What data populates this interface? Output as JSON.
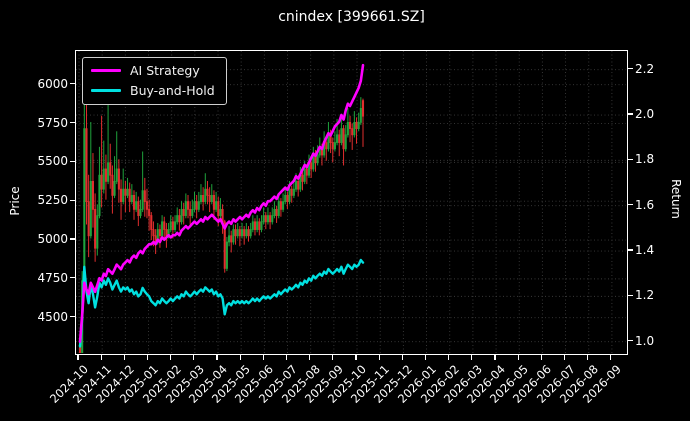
{
  "chart_data": {
    "type": "candlestick+line",
    "title": "cnindex [399661.SZ]",
    "x_axis": {
      "tick_labels": [
        "2024-10",
        "2024-11",
        "2024-12",
        "2025-01",
        "2025-02",
        "2025-03",
        "2025-04",
        "2025-05",
        "2025-06",
        "2025-07",
        "2025-08",
        "2025-09",
        "2025-10",
        "2025-11",
        "2025-12",
        "2026-01",
        "2026-02",
        "2026-03",
        "2026-04",
        "2026-05",
        "2026-06",
        "2026-07",
        "2026-08",
        "2026-09"
      ],
      "data_start": "2024-10",
      "data_end": "2025-10"
    },
    "y_left": {
      "label": "Price",
      "ticks": [
        "4500",
        "4750",
        "5000",
        "5250",
        "5500",
        "5750",
        "6000"
      ],
      "range": [
        4262,
        6226
      ]
    },
    "y_right": {
      "label": "Return",
      "ticks": [
        "1.0",
        "1.2",
        "1.4",
        "1.6",
        "1.8",
        "2.0",
        "2.2"
      ],
      "range": [
        0.94,
        2.29
      ]
    },
    "legend": [
      {
        "label": "AI Strategy",
        "color": "#ff00ff"
      },
      {
        "label": "Buy-and-Hold",
        "color": "#00e0e0"
      }
    ],
    "colors": {
      "up": "#1fa33c",
      "down": "#e22e2e",
      "ai_line": "#ff00ff",
      "bh_line": "#00e0e0",
      "grid": "#3a3a3a",
      "background": "#000000",
      "axis": "#ffffff"
    },
    "grid": true,
    "buy_and_hold": {
      "base_price": 4300,
      "note": "cyan return line = candle close / base_price, right axis"
    },
    "ai_strategy_return": [
      1.0,
      1.12,
      1.26,
      1.23,
      1.21,
      1.26,
      1.24,
      1.22,
      1.25,
      1.28,
      1.27,
      1.3,
      1.29,
      1.32,
      1.31,
      1.3,
      1.32,
      1.34,
      1.33,
      1.32,
      1.34,
      1.35,
      1.36,
      1.35,
      1.37,
      1.38,
      1.37,
      1.39,
      1.4,
      1.39,
      1.41,
      1.42,
      1.43,
      1.43,
      1.44,
      1.43,
      1.45,
      1.44,
      1.46,
      1.45,
      1.46,
      1.47,
      1.46,
      1.47,
      1.47,
      1.48,
      1.47,
      1.49,
      1.5,
      1.51,
      1.5,
      1.51,
      1.52,
      1.53,
      1.52,
      1.53,
      1.54,
      1.53,
      1.55,
      1.54,
      1.55,
      1.56,
      1.55,
      1.54,
      1.53,
      1.54,
      1.52,
      1.5,
      1.52,
      1.53,
      1.52,
      1.54,
      1.53,
      1.54,
      1.55,
      1.54,
      1.55,
      1.56,
      1.55,
      1.57,
      1.58,
      1.57,
      1.59,
      1.58,
      1.6,
      1.61,
      1.6,
      1.62,
      1.62,
      1.63,
      1.64,
      1.63,
      1.65,
      1.66,
      1.67,
      1.68,
      1.67,
      1.69,
      1.7,
      1.71,
      1.73,
      1.72,
      1.74,
      1.76,
      1.78,
      1.77,
      1.79,
      1.81,
      1.83,
      1.82,
      1.84,
      1.86,
      1.85,
      1.88,
      1.9,
      1.92,
      1.91,
      1.93,
      1.95,
      1.96,
      1.97,
      2.0,
      1.98,
      2.02,
      2.05,
      2.04,
      2.06,
      2.08,
      2.1,
      2.12,
      2.15,
      2.22
    ],
    "candles_ohlc": [
      [
        4330,
        4360,
        4140,
        4210
      ],
      [
        4210,
        4800,
        4190,
        4740
      ],
      [
        4740,
        6150,
        4720,
        5720
      ],
      [
        5720,
        5950,
        5100,
        5250
      ],
      [
        5250,
        5420,
        4890,
        5030
      ],
      [
        5030,
        5760,
        5010,
        5380
      ],
      [
        5380,
        5560,
        5080,
        5200
      ],
      [
        5200,
        5300,
        4860,
        4950
      ],
      [
        4950,
        5230,
        4900,
        5160
      ],
      [
        5160,
        5600,
        5140,
        5420
      ],
      [
        5420,
        5800,
        5210,
        5330
      ],
      [
        5330,
        5640,
        5300,
        5460
      ],
      [
        5460,
        5550,
        5260,
        5380
      ],
      [
        5380,
        5870,
        5360,
        5500
      ],
      [
        5500,
        5620,
        5330,
        5420
      ],
      [
        5420,
        5480,
        5170,
        5290
      ],
      [
        5290,
        5540,
        5270,
        5380
      ],
      [
        5380,
        5700,
        5360,
        5460
      ],
      [
        5460,
        5520,
        5240,
        5330
      ],
      [
        5330,
        5390,
        5130,
        5250
      ],
      [
        5250,
        5460,
        5230,
        5330
      ],
      [
        5330,
        5380,
        5180,
        5290
      ],
      [
        5290,
        5400,
        5270,
        5330
      ],
      [
        5330,
        5370,
        5180,
        5250
      ],
      [
        5250,
        5360,
        5230,
        5290
      ],
      [
        5290,
        5320,
        5130,
        5200
      ],
      [
        5200,
        5310,
        5180,
        5250
      ],
      [
        5250,
        5280,
        5090,
        5160
      ],
      [
        5160,
        5260,
        5140,
        5200
      ],
      [
        5200,
        5570,
        5180,
        5320
      ],
      [
        5320,
        5400,
        5150,
        5250
      ],
      [
        5250,
        5330,
        5140,
        5200
      ],
      [
        5200,
        5260,
        5060,
        5160
      ],
      [
        5160,
        5180,
        5000,
        5070
      ],
      [
        5070,
        5120,
        4960,
        5030
      ],
      [
        5030,
        5070,
        4910,
        4990
      ],
      [
        4990,
        5110,
        4970,
        5070
      ],
      [
        5070,
        5100,
        4950,
        5030
      ],
      [
        5030,
        5160,
        5010,
        5120
      ],
      [
        5120,
        5150,
        5000,
        5070
      ],
      [
        5070,
        5110,
        4950,
        5030
      ],
      [
        5030,
        5110,
        5010,
        5070
      ],
      [
        5070,
        5160,
        5050,
        5120
      ],
      [
        5120,
        5150,
        5010,
        5070
      ],
      [
        5070,
        5160,
        5050,
        5120
      ],
      [
        5120,
        5210,
        5100,
        5160
      ],
      [
        5160,
        5200,
        5060,
        5120
      ],
      [
        5120,
        5250,
        5100,
        5200
      ],
      [
        5200,
        5240,
        5100,
        5160
      ],
      [
        5160,
        5300,
        5140,
        5250
      ],
      [
        5250,
        5290,
        5140,
        5200
      ],
      [
        5200,
        5250,
        5100,
        5160
      ],
      [
        5160,
        5260,
        5140,
        5200
      ],
      [
        5200,
        5310,
        5180,
        5250
      ],
      [
        5250,
        5290,
        5140,
        5200
      ],
      [
        5200,
        5310,
        5180,
        5250
      ],
      [
        5250,
        5360,
        5230,
        5290
      ],
      [
        5290,
        5340,
        5190,
        5250
      ],
      [
        5250,
        5430,
        5230,
        5330
      ],
      [
        5330,
        5380,
        5230,
        5290
      ],
      [
        5290,
        5340,
        5180,
        5250
      ],
      [
        5250,
        5360,
        5230,
        5290
      ],
      [
        5290,
        5320,
        5130,
        5200
      ],
      [
        5200,
        5310,
        5180,
        5250
      ],
      [
        5250,
        5280,
        5090,
        5160
      ],
      [
        5160,
        5270,
        5140,
        5200
      ],
      [
        5200,
        5230,
        5040,
        5120
      ],
      [
        5120,
        5130,
        4790,
        4820
      ],
      [
        4820,
        5020,
        4800,
        4990
      ],
      [
        4990,
        5090,
        4960,
        5030
      ],
      [
        5030,
        5060,
        4920,
        4990
      ],
      [
        4990,
        5100,
        4970,
        5070
      ],
      [
        5070,
        5100,
        4970,
        5030
      ],
      [
        5030,
        5110,
        5010,
        5070
      ],
      [
        5070,
        5090,
        4960,
        5030
      ],
      [
        5030,
        5110,
        5010,
        5070
      ],
      [
        5070,
        5090,
        4970,
        5030
      ],
      [
        5030,
        5110,
        5010,
        5070
      ],
      [
        5070,
        5090,
        4990,
        5030
      ],
      [
        5030,
        5110,
        5010,
        5070
      ],
      [
        5070,
        5160,
        5050,
        5120
      ],
      [
        5120,
        5140,
        5030,
        5070
      ],
      [
        5070,
        5160,
        5050,
        5120
      ],
      [
        5120,
        5140,
        5030,
        5070
      ],
      [
        5070,
        5160,
        5050,
        5120
      ],
      [
        5120,
        5210,
        5100,
        5160
      ],
      [
        5160,
        5180,
        5070,
        5120
      ],
      [
        5120,
        5210,
        5100,
        5160
      ],
      [
        5160,
        5180,
        5070,
        5120
      ],
      [
        5120,
        5210,
        5100,
        5160
      ],
      [
        5160,
        5250,
        5140,
        5200
      ],
      [
        5200,
        5220,
        5110,
        5160
      ],
      [
        5160,
        5300,
        5140,
        5250
      ],
      [
        5250,
        5270,
        5150,
        5200
      ],
      [
        5200,
        5300,
        5180,
        5250
      ],
      [
        5250,
        5340,
        5230,
        5290
      ],
      [
        5290,
        5310,
        5200,
        5250
      ],
      [
        5250,
        5380,
        5230,
        5330
      ],
      [
        5330,
        5350,
        5240,
        5290
      ],
      [
        5290,
        5380,
        5270,
        5330
      ],
      [
        5330,
        5430,
        5310,
        5380
      ],
      [
        5380,
        5400,
        5280,
        5330
      ],
      [
        5330,
        5470,
        5310,
        5420
      ],
      [
        5420,
        5450,
        5320,
        5380
      ],
      [
        5380,
        5510,
        5360,
        5460
      ],
      [
        5460,
        5490,
        5360,
        5420
      ],
      [
        5420,
        5550,
        5400,
        5500
      ],
      [
        5500,
        5530,
        5400,
        5460
      ],
      [
        5460,
        5600,
        5440,
        5550
      ],
      [
        5550,
        5580,
        5440,
        5500
      ],
      [
        5500,
        5610,
        5480,
        5550
      ],
      [
        5550,
        5660,
        5530,
        5590
      ],
      [
        5590,
        5620,
        5480,
        5550
      ],
      [
        5550,
        5700,
        5530,
        5630
      ],
      [
        5630,
        5660,
        5510,
        5590
      ],
      [
        5590,
        5760,
        5570,
        5680
      ],
      [
        5680,
        5710,
        5560,
        5630
      ],
      [
        5630,
        5660,
        5500,
        5590
      ],
      [
        5590,
        5700,
        5570,
        5630
      ],
      [
        5630,
        5780,
        5610,
        5680
      ],
      [
        5680,
        5710,
        5540,
        5630
      ],
      [
        5630,
        5800,
        5610,
        5720
      ],
      [
        5720,
        5740,
        5480,
        5590
      ],
      [
        5590,
        5740,
        5570,
        5680
      ],
      [
        5680,
        5850,
        5660,
        5760
      ],
      [
        5760,
        5800,
        5630,
        5720
      ],
      [
        5720,
        5750,
        5580,
        5680
      ],
      [
        5680,
        5830,
        5660,
        5760
      ],
      [
        5760,
        5790,
        5620,
        5720
      ],
      [
        5720,
        5820,
        5700,
        5760
      ],
      [
        5760,
        5920,
        5740,
        5850
      ],
      [
        5900,
        5910,
        5600,
        5800
      ]
    ]
  }
}
